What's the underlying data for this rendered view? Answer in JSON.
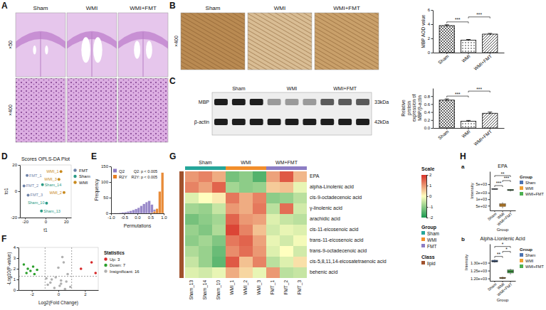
{
  "panel_labels": [
    "A",
    "B",
    "C",
    "D",
    "E",
    "F",
    "G",
    "H"
  ],
  "sub_labels": [
    "a",
    "b"
  ],
  "images": {
    "A": {
      "groups": [
        "Sham",
        "WMI",
        "WMI+FMT"
      ],
      "magnifications": [
        "×50",
        "×400"
      ]
    },
    "B": {
      "groups": [
        "Sham",
        "WMI",
        "WMI+FMT"
      ],
      "magnifications": [
        "×400"
      ]
    },
    "C": {
      "groups": [
        "Sham",
        "WMI",
        "WMI+FMT"
      ],
      "bands": [
        "MBP",
        "β-actin"
      ],
      "sizes": [
        "33kDa",
        "42kDa"
      ]
    }
  },
  "chart_data": [
    {
      "type": "bar",
      "categories": [
        "Sham",
        "WMI",
        "WMI+FMT"
      ],
      "values": [
        3.8,
        1.75,
        2.6
      ],
      "errors": [
        0.12,
        0.1,
        0.1
      ],
      "y_label": "MBP AOD value",
      "ylim": [
        0,
        6
      ],
      "yticks": [
        0,
        2,
        4,
        6
      ],
      "color": "#000000",
      "comparisons": [
        {
          "between": [
            "Sham",
            "WMI"
          ],
          "label": "***"
        },
        {
          "between": [
            "WMI",
            "WMI+FMT"
          ],
          "label": "***"
        }
      ]
    },
    {
      "type": "bar",
      "categories": [
        "Sham",
        "WMI",
        "WMI+FMT"
      ],
      "values": [
        0.7,
        0.17,
        0.37
      ],
      "errors": [
        0.03,
        0.02,
        0.03
      ],
      "y_label": "Relative protein expression of MBP/β-actin",
      "ylim": [
        0,
        1
      ],
      "yticks": [
        {
          "value": 0,
          "label": "0.0"
        },
        0.2,
        0.4,
        0.6,
        0.8
      ],
      "color": "#000000",
      "comparisons": [
        {
          "between": [
            "Sham",
            "WMI"
          ],
          "label": "***"
        },
        {
          "between": [
            "WMI",
            "WMI+FMT"
          ],
          "label": "***"
        }
      ]
    },
    {
      "type": "scatter",
      "title": "Scores OPLS-DA Plot",
      "x_label": "t1",
      "y_label": "to1",
      "xlim": [
        -25,
        25
      ],
      "xticks": [
        -20,
        0,
        20
      ],
      "ylim": [
        -20,
        20
      ],
      "yticks": [
        -20,
        0,
        20
      ],
      "legend": "right",
      "series": [
        {
          "name": "FMT",
          "color": "#6f83a8",
          "x": [
            -18,
            -21,
            -17
          ],
          "values": [
            12,
            4,
            -3
          ],
          "labels": [
            "FMT_1",
            "FMT_2",
            "FMT_3"
          ]
        },
        {
          "name": "Sham",
          "color": "#2a9a85",
          "x": [
            -3,
            1,
            -4
          ],
          "values": [
            5,
            -9,
            -15
          ],
          "labels": [
            "Sham_14",
            "Sham_10",
            "Sham_13"
          ]
        },
        {
          "name": "WMI",
          "color": "#c98a1e",
          "x": [
            15,
            13,
            18
          ],
          "values": [
            15,
            9,
            -1
          ],
          "labels": [
            "WMI_1",
            "WMI_3",
            "WMI_2"
          ]
        }
      ]
    },
    {
      "type": "histogram",
      "x_label": "Permutations",
      "y_label": "Frequency",
      "bins": [
        -1,
        -0.9,
        -0.8,
        -0.7,
        -0.6,
        -0.5,
        -0.4,
        -0.3,
        -0.2,
        -0.1,
        0,
        0.1,
        0.2,
        0.3,
        0.4,
        0.5,
        0.6,
        0.7,
        0.8,
        0.9,
        1
      ],
      "series": [
        {
          "name": "Q2",
          "color": "#8e7cc3",
          "values": [
            0,
            1,
            1,
            2,
            3,
            4,
            6,
            8,
            11,
            14,
            18,
            24,
            30,
            36,
            40,
            28,
            12,
            4,
            0,
            0
          ]
        },
        {
          "name": "R2Y",
          "color": "#e67e22",
          "values": [
            0,
            0,
            0,
            0,
            0,
            0,
            0,
            0,
            0,
            0,
            0,
            0,
            0,
            0,
            0,
            2,
            6,
            15,
            70,
            130
          ]
        }
      ],
      "xlim": [
        -1,
        1
      ],
      "xticks": [
        {
          "value": -1,
          "label": "-1.0"
        },
        -0.5,
        {
          "value": 0,
          "label": "0.0"
        },
        0.5,
        {
          "value": 1,
          "label": "1.0"
        }
      ],
      "ylim": [
        0,
        150
      ],
      "yticks": [
        0,
        50,
        100,
        150
      ],
      "legend": "upper left",
      "annotations": [
        "Q2: p < 0.005",
        "R2Y: p < 0.005"
      ]
    },
    {
      "type": "scatter",
      "x_label": "Log2(Fold Change)",
      "y_label": "-Log10(P-value)",
      "legend_title": "Statistics",
      "legend": "right",
      "xlim": [
        -3,
        3
      ],
      "xticks": [
        -2,
        0,
        2
      ],
      "ylim": [
        0,
        4
      ],
      "yticks": [
        0,
        1,
        2,
        3,
        4
      ],
      "x_thresholds": [
        -1,
        1
      ],
      "y_threshold": 1.3,
      "series": [
        {
          "name": "Up: 3",
          "color": "#d62728",
          "x": [
            1.7,
            2.5,
            2.8
          ],
          "values": [
            2.0,
            2.6,
            1.6
          ]
        },
        {
          "name": "Down: 7",
          "color": "#2ca02c",
          "x": [
            -2.6,
            -2.3,
            -2.1,
            -1.9,
            -2.4,
            -1.6,
            -1.8
          ],
          "values": [
            2.4,
            2.0,
            1.8,
            2.2,
            1.6,
            1.9,
            1.5
          ]
        },
        {
          "name": "Insignificant: 16",
          "color": "#b0b0b0",
          "x": [
            -0.5,
            0.2,
            0.4,
            0.3,
            0.1,
            -0.3,
            0.6,
            -0.8,
            0.9,
            -0.2,
            0,
            0.5,
            -0.6,
            0.7,
            -0.9,
            0.2
          ],
          "values": [
            1.0,
            0.6,
            2.6,
            3.1,
            0.4,
            0.2,
            0.8,
            0.5,
            0.3,
            1.2,
            2.1,
            0.1,
            0.7,
            1.5,
            1.1,
            0.9
          ]
        }
      ]
    },
    {
      "type": "heatmap",
      "column_groups": [
        {
          "label": "Sham",
          "size": 3
        },
        {
          "label": "WMI",
          "size": 3
        },
        {
          "label": "WM+FMT",
          "size": 3
        }
      ],
      "columns": [
        "Sham_13",
        "Sham_14",
        "Sham_10",
        "WMI_1",
        "WMI_2",
        "WMI_3",
        "FMT_1",
        "FMT_2",
        "FMT_3"
      ],
      "rows": [
        "EPA",
        "alpha-Linolenic acid",
        "cis-9-octadecenoic acid",
        "γ-linolenic acid",
        "arachidic acid",
        "cis-11-eicosenoic acid",
        "trans-11-eicosenoic acid",
        "trans-9-octadecenoic acid",
        "cis-5,8,11,14-eicosatetraenoic acid",
        "behenic acid"
      ],
      "cells": [
        [
          1.0,
          1.2,
          0.8,
          -1.2,
          -1.0,
          -1.5,
          0.9,
          1.6,
          0.7
        ],
        [
          1.2,
          0.9,
          1.5,
          -0.8,
          -1.0,
          -0.9,
          0.5,
          0.6,
          -0.2
        ],
        [
          -0.3,
          0.0,
          0.2,
          1.3,
          0.8,
          1.2,
          -1.0,
          -0.9,
          -0.6
        ],
        [
          -0.8,
          -0.9,
          -0.5,
          1.0,
          0.8,
          1.3,
          -0.6,
          1.4,
          -0.4
        ],
        [
          -1.2,
          -1.0,
          -0.8,
          1.5,
          1.0,
          0.9,
          -0.3,
          -0.5,
          -0.6
        ],
        [
          -0.9,
          -1.1,
          -0.7,
          1.8,
          1.2,
          0.6,
          -0.4,
          -0.2,
          -0.3
        ],
        [
          -1.0,
          -0.8,
          -1.1,
          1.3,
          1.5,
          0.9,
          -0.2,
          -0.4,
          -0.1
        ],
        [
          -0.7,
          -0.9,
          -1.3,
          1.1,
          1.4,
          1.0,
          -0.3,
          0.0,
          -0.4
        ],
        [
          -0.5,
          -0.9,
          -1.4,
          1.6,
          0.6,
          1.2,
          -0.6,
          -0.3,
          0.3
        ],
        [
          -0.3,
          -0.4,
          -0.2,
          0.8,
          0.4,
          -0.2,
          1.0,
          -0.6,
          -0.5
        ]
      ],
      "color_range": [
        -2,
        2
      ],
      "color_ticks": [
        -2,
        -1,
        0,
        1,
        2
      ],
      "colorbar_title": "Scale",
      "legend": "right",
      "group_legend": {
        "title": "Group",
        "items": [
          {
            "name": "Sham",
            "color": "#26a69a"
          },
          {
            "name": "WMI",
            "color": "#f28e2b"
          },
          {
            "name": "FMT",
            "color": "#8c7dc4"
          }
        ]
      },
      "class_legend": {
        "title": "Class",
        "items": [
          {
            "name": "lipid",
            "color": "#a0522d"
          }
        ]
      }
    },
    {
      "type": "box",
      "title": "EPA",
      "categories": [
        "Sham",
        "WMI",
        "WMI+FMT"
      ],
      "min": [
        2850,
        380,
        2300
      ],
      "q1": [
        2920,
        460,
        2550
      ],
      "median": [
        3000,
        540,
        2700
      ],
      "q3": [
        3080,
        620,
        2850
      ],
      "max": [
        3200,
        720,
        3000
      ],
      "colors": [
        "#4c72b0",
        "#f0a030",
        "#4caf50"
      ],
      "log": "y",
      "ylim": [
        300,
        20000
      ],
      "yticks": [
        {
          "value": 500,
          "label": "5e+02"
        },
        {
          "value": 1000,
          "label": "1e+03"
        },
        {
          "value": 2000,
          "label": "2e+03"
        },
        {
          "value": 5000,
          "label": "5e+03"
        }
      ],
      "x_label": "Group",
      "y_label": "Intensity",
      "legend": "right",
      "legend_title": "Group",
      "comparisons": [
        {
          "between": [
            "Sham",
            "WMI"
          ],
          "label": "***"
        },
        {
          "between": [
            "WMI",
            "WMI+FMT"
          ],
          "label": "***"
        },
        {
          "between": [
            "Sham",
            "WMI+FMT"
          ],
          "label": "**"
        }
      ]
    },
    {
      "type": "box",
      "title": "Alpha-Lionlenic Acid",
      "categories": [
        "Sham",
        "WMI",
        "WMI+FMT"
      ],
      "min": [
        1300,
        1195,
        1225
      ],
      "q1": [
        1305,
        1200,
        1235
      ],
      "median": [
        1310,
        1203,
        1245
      ],
      "q3": [
        1316,
        1207,
        1255
      ],
      "max": [
        1322,
        1212,
        1262
      ],
      "colors": [
        "#4c72b0",
        "#f0a030",
        "#4caf50"
      ],
      "ylim": [
        1185,
        1420
      ],
      "yticks": [
        {
          "value": 1200,
          "label": "1.20e+03"
        },
        {
          "value": 1250,
          "label": "1.25e+03"
        },
        {
          "value": 1300,
          "label": "1.30e+03"
        }
      ],
      "x_label": "Group",
      "y_label": "Intensity",
      "legend": "right",
      "legend_title": "Group",
      "comparisons": [
        {
          "between": [
            "Sham",
            "WMI"
          ],
          "label": "**"
        },
        {
          "between": [
            "WMI",
            "WMI+FMT"
          ],
          "label": "*"
        },
        {
          "between": [
            "Sham",
            "WMI+FMT"
          ],
          "label": "*"
        }
      ]
    }
  ]
}
